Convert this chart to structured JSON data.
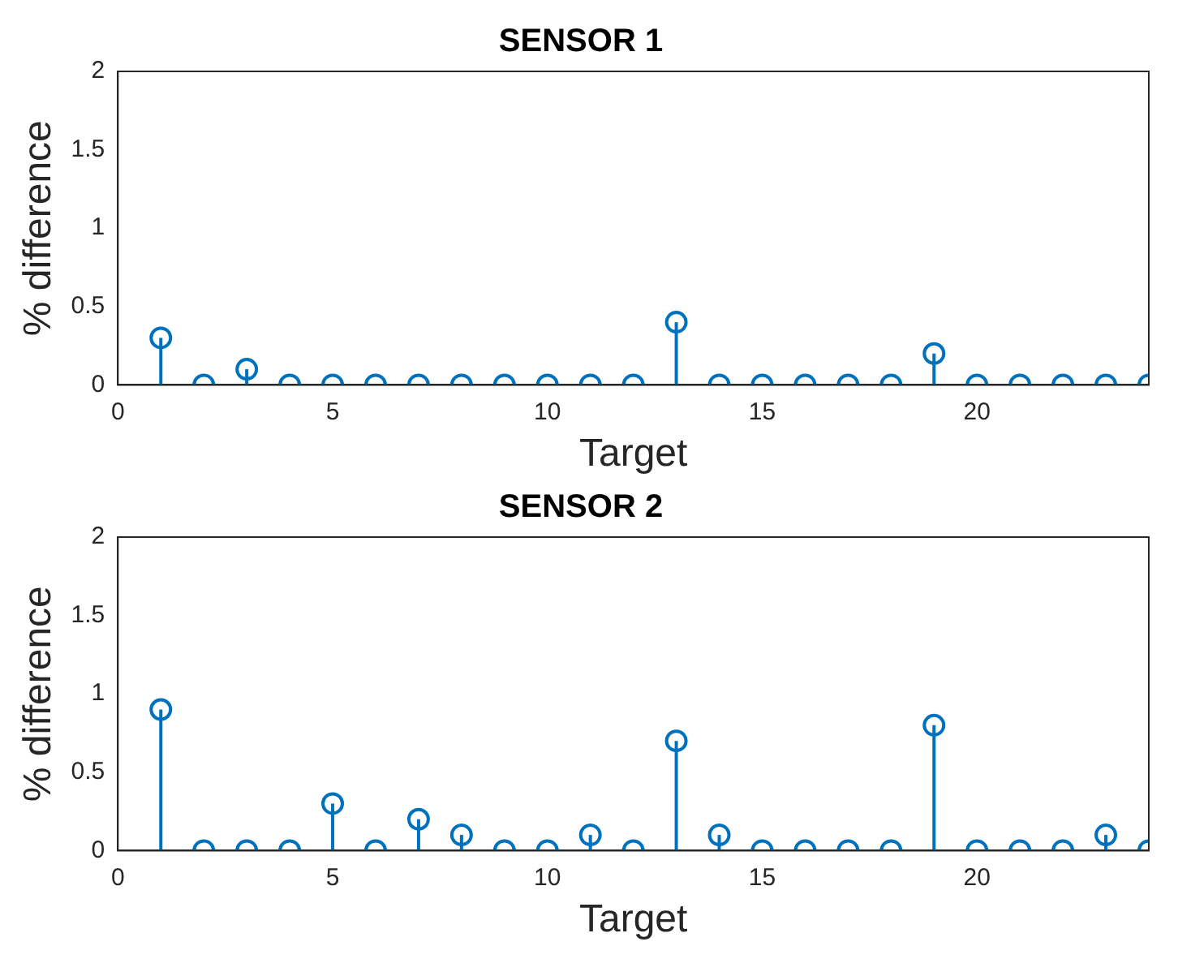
{
  "chart_data": [
    {
      "type": "lollipop",
      "title": "SENSOR 1",
      "xlabel": "Target",
      "ylabel": "% difference",
      "marker": "circle",
      "grid": false,
      "legend": false,
      "xlim": [
        0,
        24
      ],
      "xticks": [
        0,
        5,
        10,
        15,
        20
      ],
      "ylim": [
        0,
        2
      ],
      "yticks": [
        0,
        0.5,
        1,
        1.5,
        2
      ],
      "x": [
        1,
        2,
        3,
        4,
        5,
        6,
        7,
        8,
        9,
        10,
        11,
        12,
        13,
        14,
        15,
        16,
        17,
        18,
        19,
        20,
        21,
        22,
        23,
        24
      ],
      "series": [
        {
          "color": "#0072bd",
          "values": [
            0.3,
            0,
            0.1,
            0,
            0,
            0,
            0,
            0,
            0,
            0,
            0,
            0,
            0.4,
            0,
            0,
            0,
            0,
            0,
            0.2,
            0,
            0,
            0,
            0,
            0
          ]
        }
      ]
    },
    {
      "type": "lollipop",
      "title": "SENSOR 2",
      "xlabel": "Target",
      "ylabel": "% difference",
      "marker": "circle",
      "grid": false,
      "legend": false,
      "xlim": [
        0,
        24
      ],
      "xticks": [
        0,
        5,
        10,
        15,
        20
      ],
      "ylim": [
        0,
        2
      ],
      "yticks": [
        0,
        0.5,
        1,
        1.5,
        2
      ],
      "x": [
        1,
        2,
        3,
        4,
        5,
        6,
        7,
        8,
        9,
        10,
        11,
        12,
        13,
        14,
        15,
        16,
        17,
        18,
        19,
        20,
        21,
        22,
        23,
        24
      ],
      "series": [
        {
          "color": "#0072bd",
          "values": [
            0.9,
            0,
            0,
            0,
            0.3,
            0,
            0.2,
            0.1,
            0,
            0,
            0.1,
            0,
            0.7,
            0.1,
            0,
            0,
            0,
            0,
            0.8,
            0,
            0,
            0,
            0.1,
            0
          ]
        }
      ]
    }
  ]
}
